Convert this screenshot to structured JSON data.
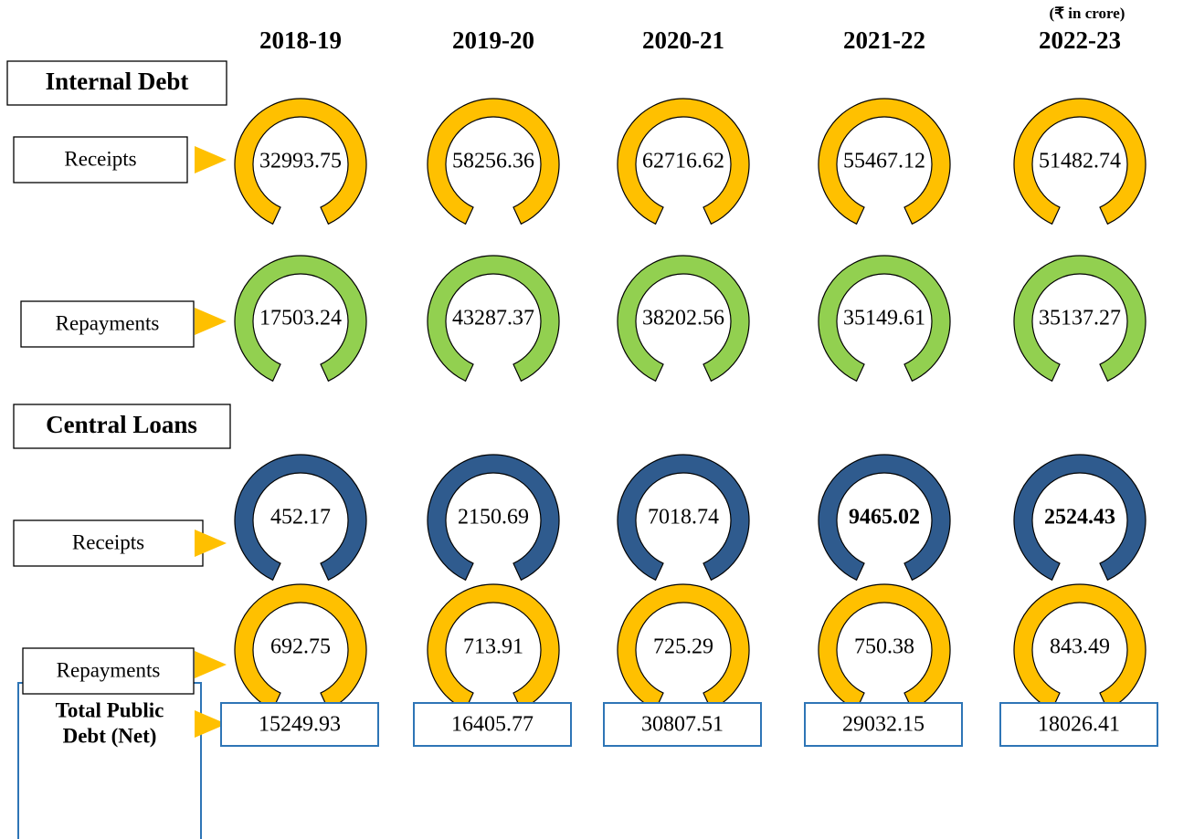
{
  "unit": "(₹ in crore)",
  "years": [
    "2018-19",
    "2019-20",
    "2020-21",
    "2021-22",
    "2022-23"
  ],
  "sections": [
    {
      "title": "Internal Debt",
      "rows": [
        {
          "label": "Receipts",
          "values": [
            "32993.75",
            "58256.36",
            "62716.62",
            "55467.12",
            "51482.74"
          ]
        },
        {
          "label": "Repayments",
          "values": [
            "17503.24",
            "43287.37",
            "38202.56",
            "35149.61",
            "35137.27"
          ]
        }
      ]
    },
    {
      "title": "Central Loans",
      "rows": [
        {
          "label": "Receipts",
          "values": [
            "452.17",
            "2150.69",
            "7018.74",
            "9465.02",
            "2524.43"
          ]
        },
        {
          "label": "Repayments",
          "values": [
            "692.75",
            "713.91",
            "725.29",
            "750.38",
            "843.49"
          ]
        }
      ]
    }
  ],
  "total": {
    "label": [
      "Total Public",
      "Debt (Net)"
    ],
    "values": [
      "15249.93",
      "16405.77",
      "30807.51",
      "29032.15",
      "18026.41"
    ]
  }
}
